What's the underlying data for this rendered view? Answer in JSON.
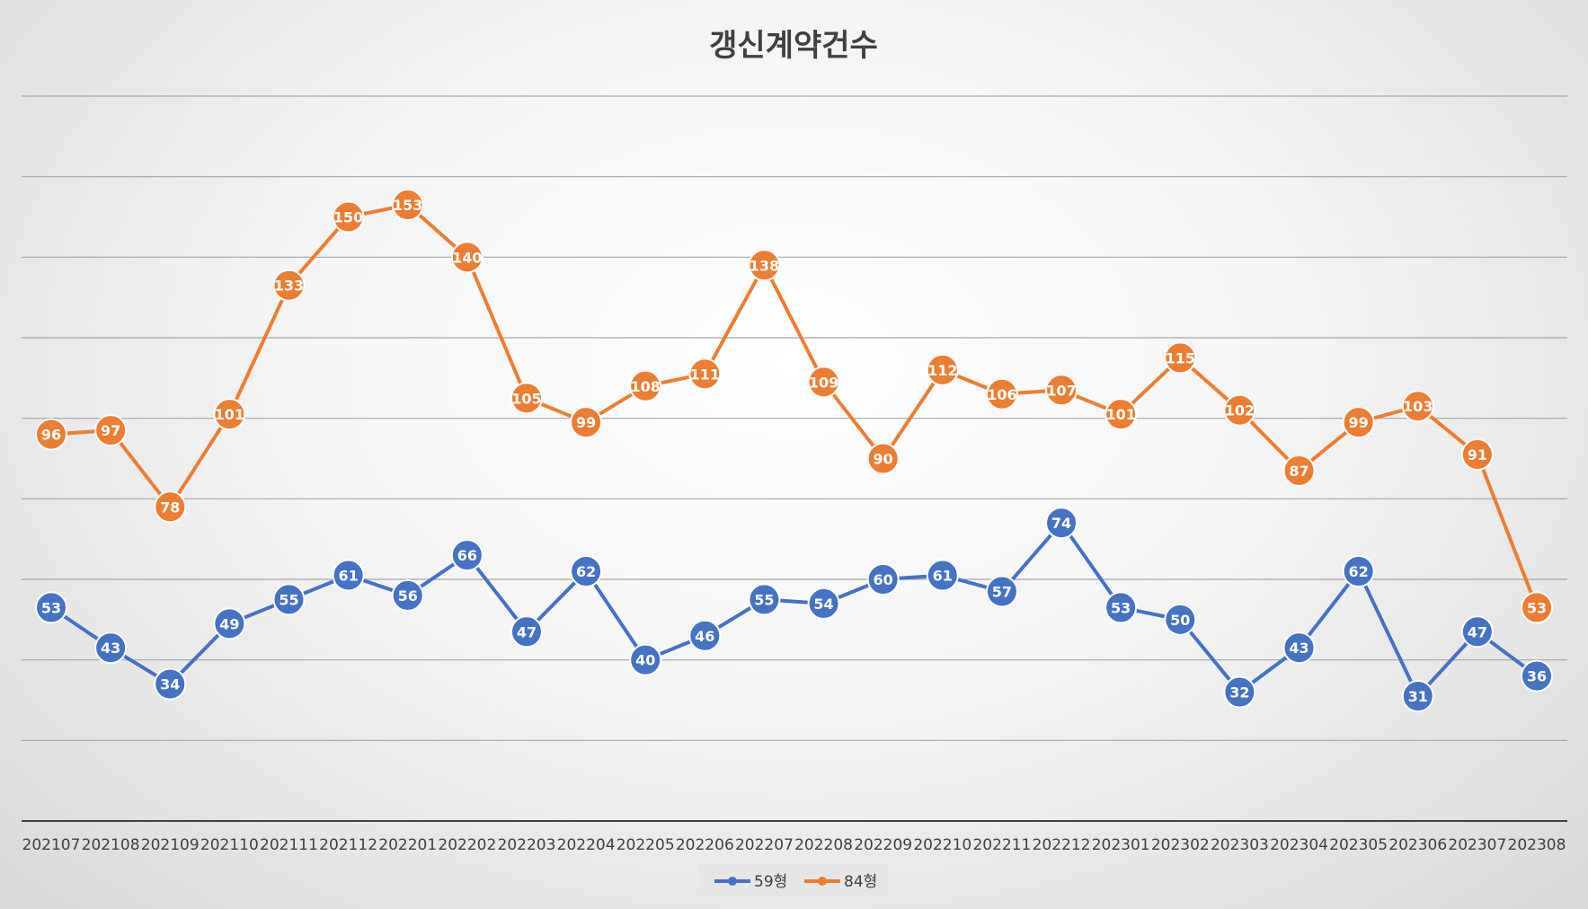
{
  "chart_data": {
    "type": "line",
    "title": "갱신계약건수",
    "xlabel": "",
    "ylabel": "",
    "ylim": [
      0,
      180
    ],
    "grid": true,
    "legend_position": "bottom",
    "categories": [
      "202107",
      "202108",
      "202109",
      "202110",
      "202111",
      "202112",
      "202201",
      "202202",
      "202203",
      "202204",
      "202205",
      "202206",
      "202207",
      "202208",
      "202209",
      "202210",
      "202211",
      "202212",
      "202301",
      "202302",
      "202303",
      "202304",
      "202305",
      "202306",
      "202307",
      "202308"
    ],
    "series": [
      {
        "name": "59형",
        "color": "#4472C4",
        "values": [
          53,
          43,
          34,
          49,
          55,
          61,
          56,
          66,
          47,
          62,
          40,
          46,
          55,
          54,
          60,
          61,
          57,
          74,
          53,
          50,
          32,
          43,
          62,
          31,
          47,
          36
        ]
      },
      {
        "name": "84형",
        "color": "#ED7D31",
        "values": [
          96,
          97,
          78,
          101,
          133,
          150,
          153,
          140,
          105,
          99,
          108,
          111,
          138,
          109,
          90,
          112,
          106,
          107,
          101,
          115,
          102,
          87,
          99,
          103,
          91,
          53
        ]
      }
    ]
  }
}
